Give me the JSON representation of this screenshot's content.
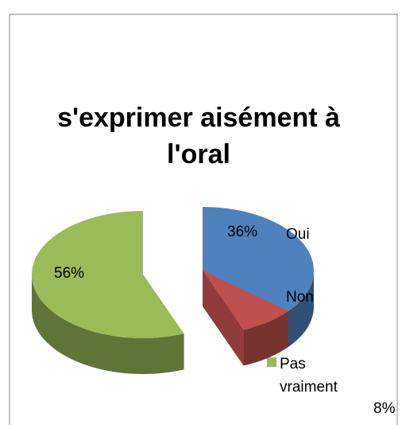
{
  "chart_data": {
    "type": "pie",
    "title": "s'exprimer aisément à l'oral",
    "categories": [
      "Oui",
      "Non",
      "Pas vraiment"
    ],
    "values": [
      36,
      8,
      56
    ],
    "value_labels": [
      "36%",
      "8%",
      "56%"
    ],
    "colors": [
      "#4f81bd",
      "#c0504d",
      "#9bbb59"
    ]
  }
}
